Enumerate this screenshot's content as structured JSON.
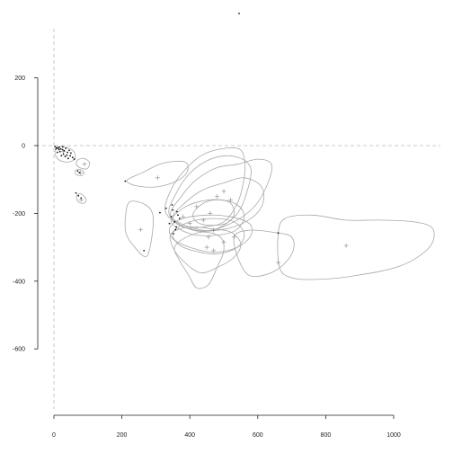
{
  "chart_data": {
    "type": "scatter",
    "title": "",
    "xlabel": "",
    "ylabel": "",
    "xlim": [
      -10,
      1130
    ],
    "ylim": [
      -770,
      350
    ],
    "x_ticks": [
      0,
      200,
      400,
      600,
      800,
      1000
    ],
    "y_ticks": [
      200,
      0,
      -200,
      -400,
      -600
    ],
    "x_tick_labels": [
      "0",
      "200",
      "400",
      "600",
      "800",
      "1000"
    ],
    "y_tick_labels": [
      "200",
      "0",
      "-200",
      "-400",
      "-600"
    ],
    "reference_lines": {
      "x": 0,
      "y": 0,
      "style": "dashed"
    },
    "grid": false,
    "legend": "none",
    "colors": {
      "contour": "#a9a9a9",
      "points": "#111111",
      "reference": "#bbbbbb",
      "axis": "#222222"
    },
    "points": [
      [
        3,
        -3
      ],
      [
        8,
        -6
      ],
      [
        12,
        -8
      ],
      [
        16,
        -5
      ],
      [
        20,
        -10
      ],
      [
        25,
        -12
      ],
      [
        18,
        -18
      ],
      [
        30,
        -15
      ],
      [
        35,
        -8
      ],
      [
        40,
        -20
      ],
      [
        28,
        -25
      ],
      [
        45,
        -14
      ],
      [
        10,
        -20
      ],
      [
        22,
        -30
      ],
      [
        33,
        -32
      ],
      [
        50,
        -22
      ],
      [
        55,
        -35
      ],
      [
        15,
        -12
      ],
      [
        38,
        -28
      ],
      [
        60,
        -40
      ],
      [
        6,
        -10
      ],
      [
        26,
        -4
      ],
      [
        42,
        -38
      ],
      [
        48,
        -30
      ],
      [
        70,
        -75
      ],
      [
        75,
        -80
      ],
      [
        65,
        -140
      ],
      [
        72,
        -148
      ],
      [
        80,
        -155
      ],
      [
        210,
        -105
      ],
      [
        312,
        -198
      ],
      [
        330,
        -185
      ],
      [
        345,
        -210
      ],
      [
        350,
        -190
      ],
      [
        355,
        -225
      ],
      [
        360,
        -240
      ],
      [
        365,
        -205
      ],
      [
        340,
        -230
      ],
      [
        358,
        -248
      ],
      [
        348,
        -175
      ],
      [
        352,
        -260
      ],
      [
        370,
        -215
      ],
      [
        362,
        -195
      ],
      [
        660,
        -258
      ],
      [
        265,
        -310
      ]
    ],
    "centroids": [
      [
        28,
        -18
      ],
      [
        90,
        -55
      ],
      [
        78,
        -80
      ],
      [
        80,
        -160
      ],
      [
        305,
        -95
      ],
      [
        255,
        -248
      ],
      [
        380,
        -210
      ],
      [
        400,
        -230
      ],
      [
        420,
        -180
      ],
      [
        440,
        -220
      ],
      [
        460,
        -200
      ],
      [
        470,
        -250
      ],
      [
        455,
        -270
      ],
      [
        480,
        -150
      ],
      [
        500,
        -135
      ],
      [
        520,
        -160
      ],
      [
        450,
        -300
      ],
      [
        470,
        -310
      ],
      [
        500,
        -285
      ],
      [
        530,
        -270
      ],
      [
        860,
        -295
      ],
      [
        660,
        -345
      ]
    ],
    "contours": [
      [
        [
          5,
          -30
        ],
        [
          20,
          -45
        ],
        [
          45,
          -48
        ],
        [
          62,
          -38
        ],
        [
          60,
          -20
        ],
        [
          45,
          -8
        ],
        [
          20,
          -2
        ],
        [
          5,
          -12
        ]
      ],
      [
        [
          70,
          -42
        ],
        [
          88,
          -38
        ],
        [
          105,
          -50
        ],
        [
          98,
          -68
        ],
        [
          78,
          -66
        ],
        [
          66,
          -55
        ]
      ],
      [
        [
          62,
          -75
        ],
        [
          75,
          -70
        ],
        [
          88,
          -78
        ],
        [
          82,
          -88
        ],
        [
          66,
          -86
        ]
      ],
      [
        [
          66,
          -150
        ],
        [
          78,
          -142
        ],
        [
          95,
          -158
        ],
        [
          88,
          -170
        ],
        [
          72,
          -166
        ]
      ],
      [
        [
          215,
          -102
        ],
        [
          260,
          -80
        ],
        [
          320,
          -52
        ],
        [
          385,
          -48
        ],
        [
          392,
          -78
        ],
        [
          360,
          -105
        ],
        [
          300,
          -122
        ],
        [
          240,
          -118
        ]
      ],
      [
        [
          212,
          -198
        ],
        [
          225,
          -165
        ],
        [
          270,
          -175
        ],
        [
          292,
          -210
        ],
        [
          285,
          -290
        ],
        [
          270,
          -328
        ],
        [
          238,
          -300
        ],
        [
          212,
          -258
        ]
      ],
      [
        [
          328,
          -195
        ],
        [
          345,
          -130
        ],
        [
          380,
          -78
        ],
        [
          430,
          -32
        ],
        [
          480,
          -12
        ],
        [
          540,
          -8
        ],
        [
          560,
          -35
        ],
        [
          560,
          -95
        ],
        [
          540,
          -170
        ],
        [
          500,
          -225
        ],
        [
          440,
          -240
        ],
        [
          380,
          -240
        ]
      ],
      [
        [
          340,
          -205
        ],
        [
          360,
          -140
        ],
        [
          400,
          -82
        ],
        [
          450,
          -45
        ],
        [
          505,
          -30
        ],
        [
          555,
          -40
        ],
        [
          580,
          -70
        ],
        [
          570,
          -130
        ],
        [
          540,
          -200
        ],
        [
          480,
          -245
        ],
        [
          410,
          -250
        ]
      ],
      [
        [
          345,
          -210
        ],
        [
          375,
          -150
        ],
        [
          420,
          -100
        ],
        [
          480,
          -65
        ],
        [
          540,
          -55
        ],
        [
          600,
          -40
        ],
        [
          640,
          -55
        ],
        [
          630,
          -110
        ],
        [
          590,
          -180
        ],
        [
          520,
          -230
        ],
        [
          440,
          -250
        ]
      ],
      [
        [
          350,
          -215
        ],
        [
          390,
          -165
        ],
        [
          440,
          -130
        ],
        [
          500,
          -110
        ],
        [
          560,
          -95
        ],
        [
          610,
          -120
        ],
        [
          615,
          -170
        ],
        [
          580,
          -215
        ],
        [
          510,
          -245
        ],
        [
          420,
          -250
        ]
      ],
      [
        [
          345,
          -225
        ],
        [
          380,
          -185
        ],
        [
          430,
          -165
        ],
        [
          490,
          -160
        ],
        [
          540,
          -175
        ],
        [
          560,
          -210
        ],
        [
          535,
          -250
        ],
        [
          470,
          -265
        ],
        [
          400,
          -260
        ]
      ],
      [
        [
          342,
          -240
        ],
        [
          380,
          -215
        ],
        [
          450,
          -205
        ],
        [
          520,
          -210
        ],
        [
          575,
          -230
        ],
        [
          580,
          -265
        ],
        [
          540,
          -300
        ],
        [
          470,
          -315
        ],
        [
          400,
          -300
        ],
        [
          350,
          -275
        ]
      ],
      [
        [
          345,
          -260
        ],
        [
          395,
          -240
        ],
        [
          460,
          -245
        ],
        [
          520,
          -255
        ],
        [
          550,
          -290
        ],
        [
          530,
          -330
        ],
        [
          480,
          -360
        ],
        [
          430,
          -375
        ],
        [
          380,
          -340
        ],
        [
          350,
          -300
        ]
      ],
      [
        [
          355,
          -300
        ],
        [
          390,
          -270
        ],
        [
          440,
          -255
        ],
        [
          490,
          -270
        ],
        [
          500,
          -310
        ],
        [
          480,
          -360
        ],
        [
          455,
          -410
        ],
        [
          420,
          -420
        ],
        [
          395,
          -380
        ],
        [
          370,
          -340
        ]
      ],
      [
        [
          350,
          -255
        ],
        [
          400,
          -225
        ],
        [
          470,
          -215
        ],
        [
          530,
          -225
        ],
        [
          560,
          -260
        ],
        [
          540,
          -300
        ],
        [
          480,
          -320
        ],
        [
          410,
          -310
        ],
        [
          365,
          -290
        ]
      ],
      [
        [
          530,
          -270
        ],
        [
          570,
          -250
        ],
        [
          640,
          -255
        ],
        [
          700,
          -270
        ],
        [
          700,
          -320
        ],
        [
          650,
          -370
        ],
        [
          580,
          -385
        ],
        [
          545,
          -340
        ]
      ],
      [
        [
          660,
          -262
        ],
        [
          680,
          -215
        ],
        [
          760,
          -205
        ],
        [
          860,
          -220
        ],
        [
          960,
          -220
        ],
        [
          1060,
          -225
        ],
        [
          1115,
          -245
        ],
        [
          1105,
          -300
        ],
        [
          1020,
          -355
        ],
        [
          880,
          -385
        ],
        [
          770,
          -395
        ],
        [
          700,
          -390
        ],
        [
          664,
          -360
        ]
      ],
      [
        [
          410,
          -200
        ],
        [
          440,
          -170
        ],
        [
          480,
          -160
        ],
        [
          520,
          -170
        ],
        [
          530,
          -205
        ],
        [
          505,
          -230
        ],
        [
          455,
          -235
        ],
        [
          420,
          -225
        ]
      ]
    ]
  }
}
